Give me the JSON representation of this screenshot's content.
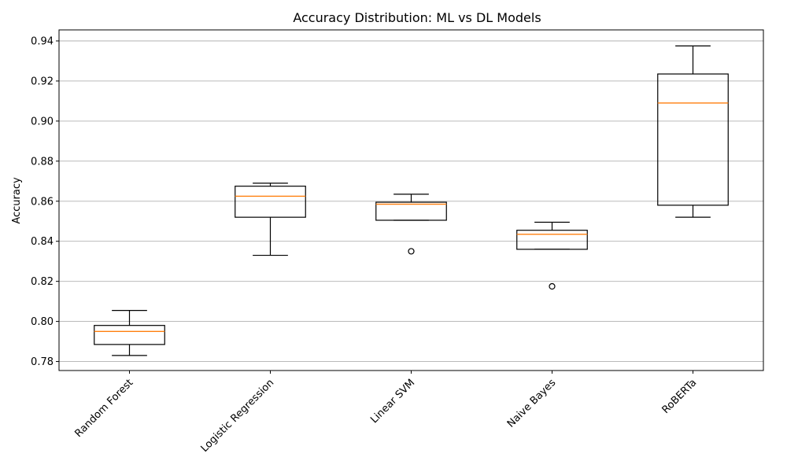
{
  "chart_data": {
    "type": "box",
    "title": "Accuracy Distribution: ML vs DL Models",
    "xlabel": "",
    "ylabel": "Accuracy",
    "ylim": [
      0.7755,
      0.9455
    ],
    "yticks": [
      0.78,
      0.8,
      0.82,
      0.84,
      0.86,
      0.88,
      0.9,
      0.92,
      0.94
    ],
    "ytick_labels": [
      "0.78",
      "0.80",
      "0.82",
      "0.84",
      "0.86",
      "0.88",
      "0.90",
      "0.92",
      "0.94"
    ],
    "grid": "y",
    "categories": [
      "Random Forest",
      "Logistic Regression",
      "Linear SVM",
      "Naive Bayes",
      "RoBERTa"
    ],
    "boxes": [
      {
        "label": "Random Forest",
        "whisker_low": 0.783,
        "q1": 0.7885,
        "median": 0.795,
        "q3": 0.798,
        "whisker_high": 0.8055,
        "outliers": []
      },
      {
        "label": "Logistic Regression",
        "whisker_low": 0.833,
        "q1": 0.852,
        "median": 0.8625,
        "q3": 0.8675,
        "whisker_high": 0.869,
        "outliers": []
      },
      {
        "label": "Linear SVM",
        "whisker_low": 0.8505,
        "q1": 0.8505,
        "median": 0.8585,
        "q3": 0.8595,
        "whisker_high": 0.8635,
        "outliers": [
          0.835
        ]
      },
      {
        "label": "Naive Bayes",
        "whisker_low": 0.836,
        "q1": 0.836,
        "median": 0.8435,
        "q3": 0.8455,
        "whisker_high": 0.8495,
        "outliers": [
          0.8175
        ]
      },
      {
        "label": "RoBERTa",
        "whisker_low": 0.852,
        "q1": 0.858,
        "median": 0.909,
        "q3": 0.9235,
        "whisker_high": 0.9375,
        "outliers": []
      }
    ],
    "colors": {
      "box": "#000000",
      "median": "#ff7f0e",
      "grid": "#b0b0b0",
      "background": "#ffffff"
    }
  }
}
